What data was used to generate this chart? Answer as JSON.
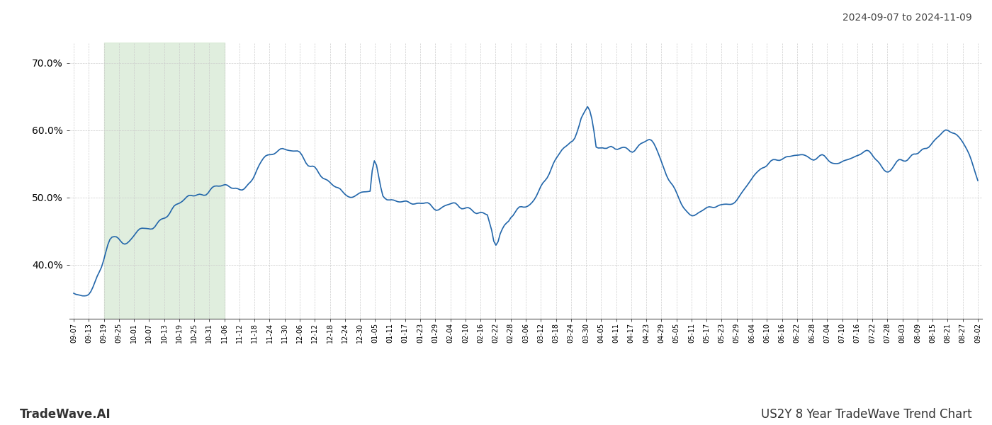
{
  "title_top_right": "2024-09-07 to 2024-11-09",
  "bottom_left": "TradeWave.AI",
  "bottom_right": "US2Y 8 Year TradeWave Trend Chart",
  "line_color": "#2266aa",
  "line_width": 1.2,
  "shade_color": "#d4e8d0",
  "shade_alpha": 0.7,
  "ylim": [
    32,
    73
  ],
  "yticks": [
    40.0,
    50.0,
    60.0,
    70.0
  ],
  "background_color": "#ffffff",
  "grid_color": "#cccccc",
  "x_tick_labels": [
    "09-07",
    "09-13",
    "09-19",
    "09-25",
    "10-01",
    "10-07",
    "10-13",
    "10-19",
    "10-25",
    "10-31",
    "11-06",
    "11-12",
    "11-18",
    "11-24",
    "11-30",
    "12-06",
    "12-12",
    "12-18",
    "12-24",
    "12-30",
    "01-05",
    "01-11",
    "01-17",
    "01-23",
    "01-29",
    "02-04",
    "02-10",
    "02-16",
    "02-22",
    "02-28",
    "03-06",
    "03-12",
    "03-18",
    "03-24",
    "03-30",
    "04-05",
    "04-11",
    "04-17",
    "04-23",
    "04-29",
    "05-05",
    "05-11",
    "05-17",
    "05-23",
    "05-29",
    "06-04",
    "06-10",
    "06-16",
    "06-22",
    "06-28",
    "07-04",
    "07-10",
    "07-16",
    "07-22",
    "07-28",
    "08-03",
    "08-09",
    "08-15",
    "08-21",
    "08-27",
    "09-02"
  ],
  "shade_start_label": "09-19",
  "shade_end_label": "11-06",
  "key_points_x": [
    0,
    6,
    12,
    18,
    24,
    30,
    40,
    50,
    60,
    70,
    80,
    90,
    100,
    110,
    120,
    130,
    140,
    150,
    160,
    170,
    180,
    190,
    200,
    210,
    220,
    230,
    240,
    250,
    260,
    270,
    280,
    290,
    300,
    310,
    320,
    330,
    340,
    350,
    360,
    370,
    380,
    390,
    400,
    410,
    420
  ],
  "key_points_y": [
    35.5,
    35.0,
    39.5,
    44.5,
    43.5,
    45.0,
    46.5,
    49.5,
    50.5,
    51.5,
    51.5,
    56.0,
    57.5,
    55.0,
    52.0,
    50.5,
    51.0,
    49.5,
    49.0,
    48.5,
    48.5,
    48.0,
    47.0,
    47.5,
    52.0,
    57.5,
    58.5,
    57.0,
    57.5,
    58.5,
    52.0,
    47.5,
    48.5,
    49.0,
    53.5,
    55.5,
    56.5,
    56.0,
    55.0,
    56.5,
    54.5,
    55.5,
    57.5,
    60.0,
    55.5
  ],
  "total_points": 425
}
